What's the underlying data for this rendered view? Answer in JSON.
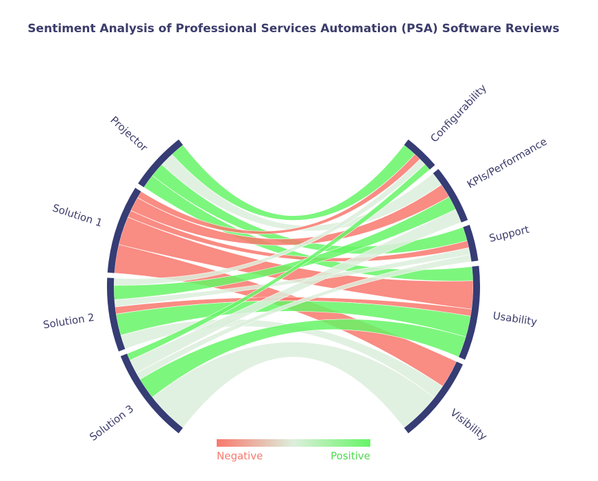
{
  "chart_data": {
    "type": "chord",
    "title": "Sentiment Analysis of Professional Services Automation (PSA) Software Reviews",
    "sources": [
      "Projector",
      "Solution 1",
      "Solution 2",
      "Solution 3"
    ],
    "targets": [
      "Configurability",
      "KPIs/Performance",
      "Support",
      "Usability",
      "Visibility"
    ],
    "links": [
      {
        "source": 0,
        "target": 0,
        "value": 2,
        "sentiment": 1
      },
      {
        "source": 0,
        "target": 1,
        "value": 2,
        "sentiment": 0
      },
      {
        "source": 0,
        "target": 2,
        "value": 2,
        "sentiment": 1
      },
      {
        "source": 0,
        "target": 3,
        "value": 2,
        "sentiment": 1
      },
      {
        "source": 1,
        "target": 0,
        "value": 1,
        "sentiment": -1
      },
      {
        "source": 1,
        "target": 1,
        "value": 2,
        "sentiment": -1
      },
      {
        "source": 1,
        "target": 2,
        "value": 1,
        "sentiment": -1
      },
      {
        "source": 1,
        "target": 3,
        "value": 4,
        "sentiment": -1
      },
      {
        "source": 1,
        "target": 4,
        "value": 4,
        "sentiment": -1
      },
      {
        "source": 2,
        "target": 0,
        "value": 1,
        "sentiment": 0
      },
      {
        "source": 2,
        "target": 1,
        "value": 2,
        "sentiment": 1
      },
      {
        "source": 2,
        "target": 2,
        "value": 1,
        "sentiment": 0
      },
      {
        "source": 2,
        "target": 3,
        "value": 1,
        "sentiment": -1
      },
      {
        "source": 2,
        "target": 3,
        "value": 3,
        "sentiment": 1
      },
      {
        "source": 2,
        "target": 4,
        "value": 2,
        "sentiment": 0
      },
      {
        "source": 3,
        "target": 0,
        "value": 1,
        "sentiment": 1
      },
      {
        "source": 3,
        "target": 1,
        "value": 2,
        "sentiment": 0
      },
      {
        "source": 3,
        "target": 2,
        "value": 1,
        "sentiment": 0
      },
      {
        "source": 3,
        "target": 3,
        "value": 3,
        "sentiment": 1
      },
      {
        "source": 3,
        "target": 4,
        "value": 6,
        "sentiment": 0
      }
    ],
    "colorscale": [
      [
        -1,
        "#f8786d"
      ],
      [
        0,
        "#dcefdc"
      ],
      [
        1,
        "#66f566"
      ]
    ],
    "node_color": "#363c74",
    "legend": {
      "low_label": "Negative",
      "high_label": "Positive"
    }
  }
}
